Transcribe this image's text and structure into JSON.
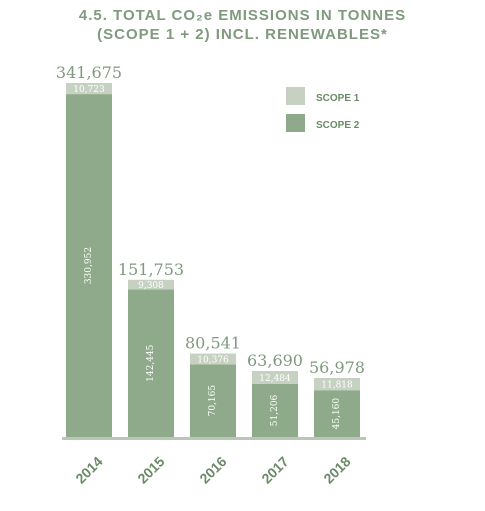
{
  "colors": {
    "scope1": "#c6d1c2",
    "scope2": "#8faa8a",
    "title": "#7f9a7d",
    "total": "#7f9a7d",
    "axis": "#b9c7b6",
    "year": "#6b8a68",
    "inner_label": "#ffffff",
    "scope1_label": "#ffffff"
  },
  "chart_data": {
    "type": "bar",
    "stacked": true,
    "title": "4.5. TOTAL CO₂e EMISSIONS IN TONNES",
    "subtitle": "(SCOPE 1 + 2) INCL. RENEWABLES*",
    "categories": [
      "2014",
      "2015",
      "2016",
      "2017",
      "2018"
    ],
    "series": [
      {
        "name": "SCOPE 1",
        "values": [
          10723,
          9308,
          10376,
          12484,
          11818
        ],
        "labels": [
          "10,723",
          "9,308",
          "10,376",
          "12,484",
          "11,818"
        ]
      },
      {
        "name": "SCOPE 2",
        "values": [
          330952,
          142445,
          70165,
          51206,
          45160
        ],
        "labels": [
          "330,952",
          "142,445",
          "70,165",
          "51,206",
          "45,160"
        ]
      }
    ],
    "totals": [
      "341,675",
      "151,753",
      "80,541",
      "63,690",
      "56,978"
    ],
    "legend": {
      "placement": "top-right",
      "items": [
        "SCOPE 1",
        "SCOPE 2"
      ]
    },
    "ylim": [
      0,
      341675
    ],
    "grid": false,
    "xlabel": "",
    "ylabel": ""
  }
}
